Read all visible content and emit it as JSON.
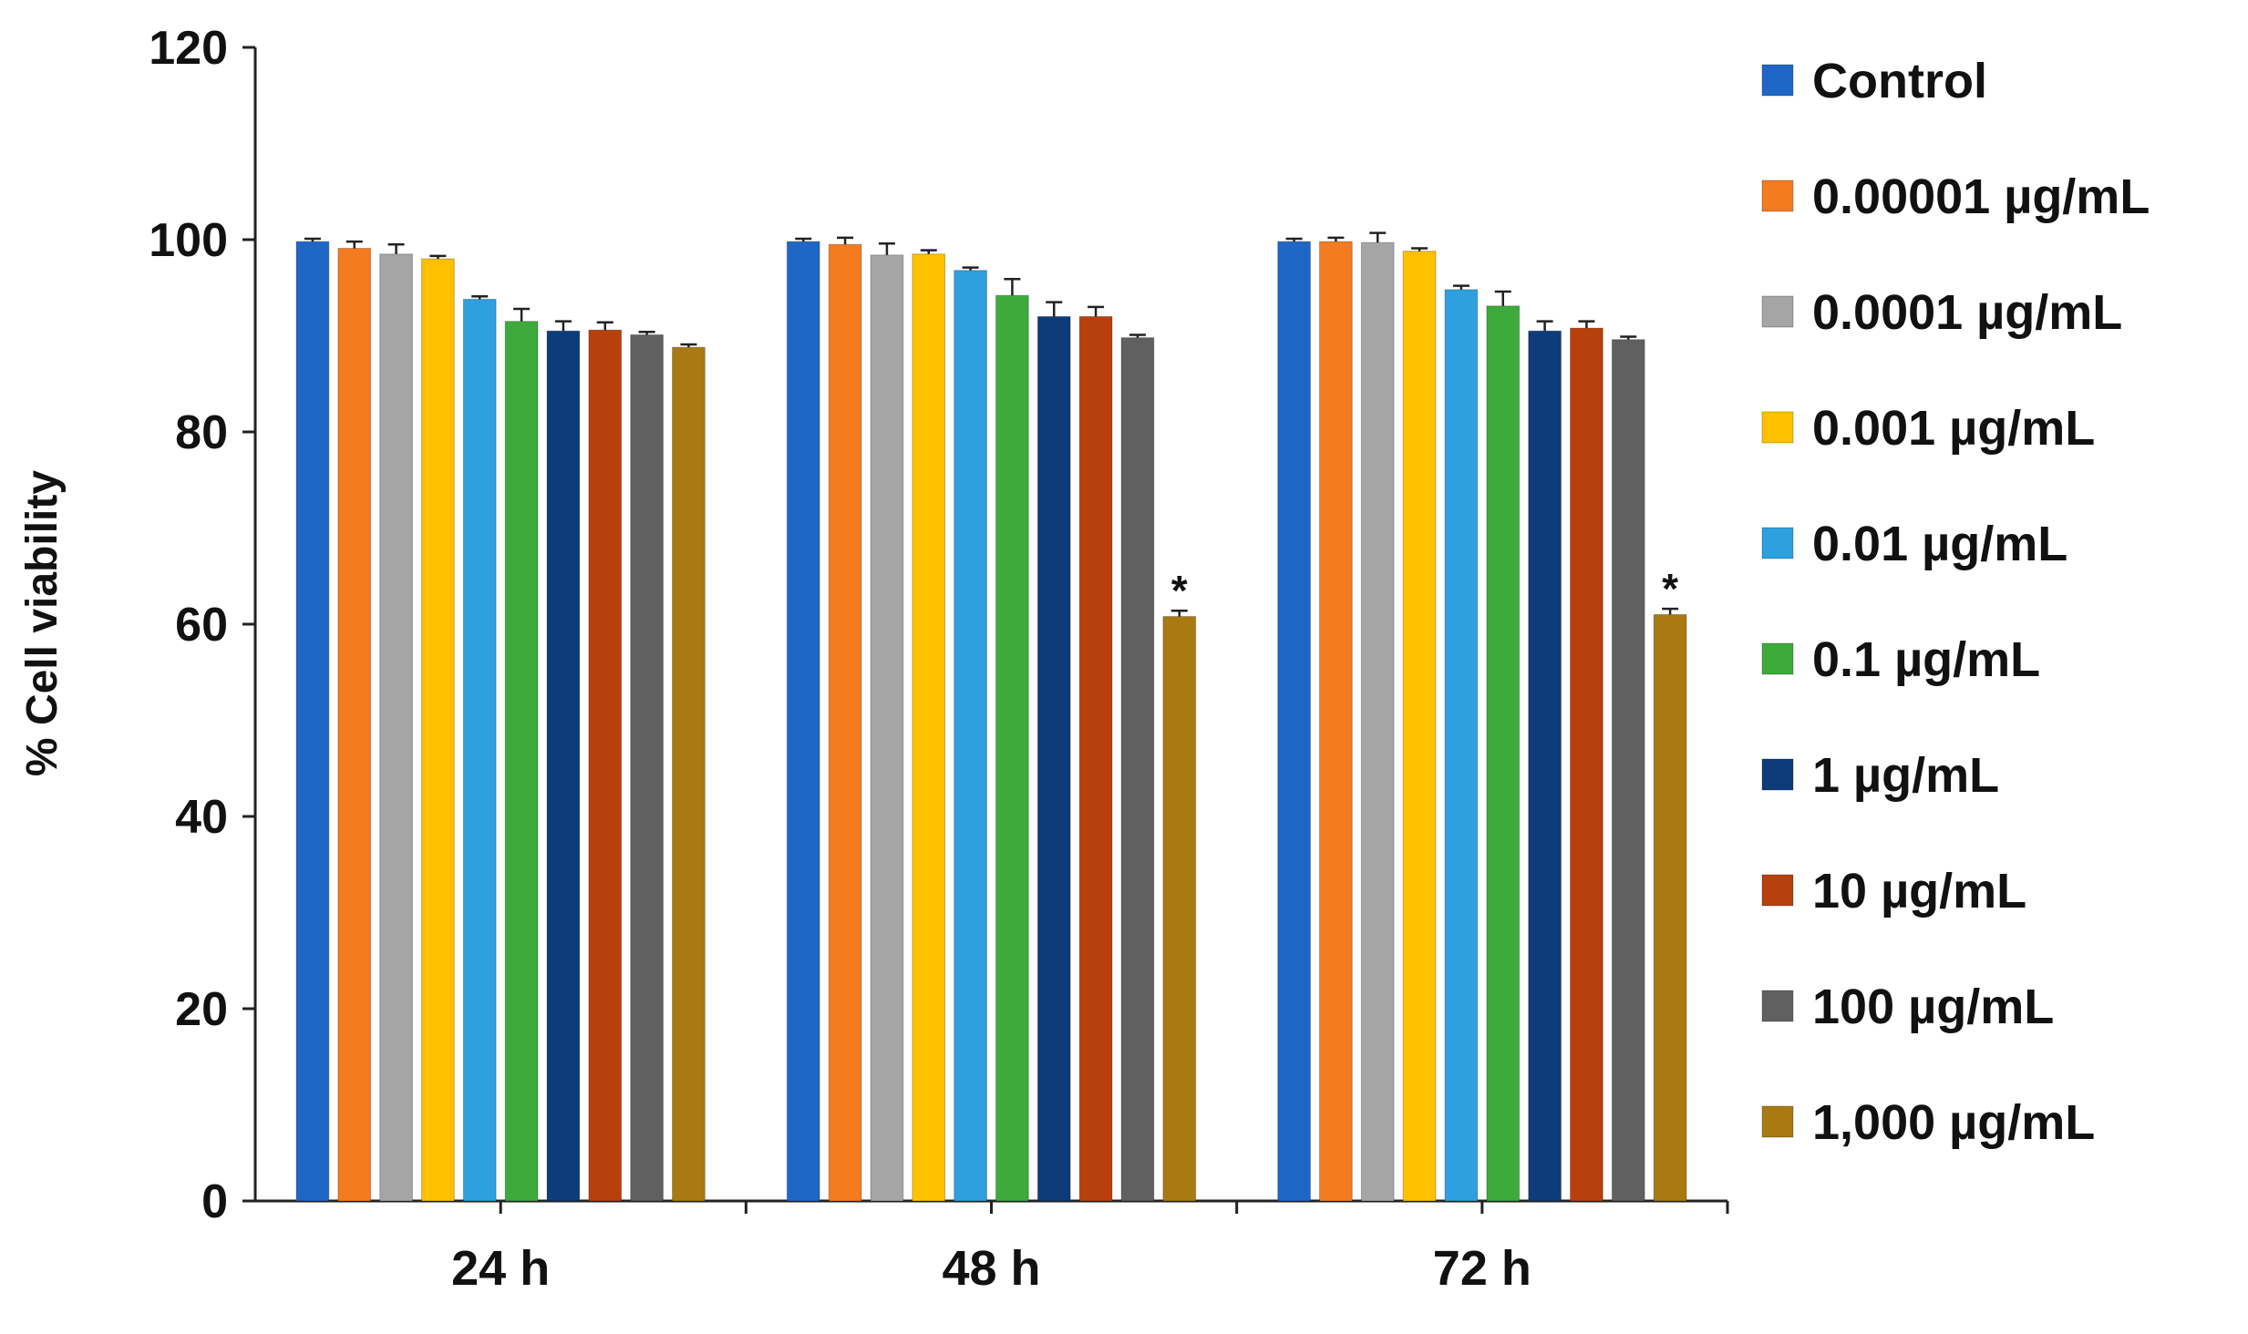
{
  "chart_data": {
    "type": "bar",
    "title": "",
    "xlabel": "",
    "ylabel": "% Cell viability",
    "ylim": [
      0,
      120
    ],
    "yticks": [
      0,
      20,
      40,
      60,
      80,
      100,
      120
    ],
    "grid": false,
    "legend_position": "right",
    "categories": [
      "24 h",
      "48 h",
      "72 h"
    ],
    "series": [
      {
        "name": "Control",
        "color": "#1f67c6",
        "values": [
          99.8,
          99.8,
          99.8
        ],
        "errors": [
          0.3,
          0.3,
          0.3
        ],
        "significant": [
          "",
          "",
          ""
        ]
      },
      {
        "name": "0.00001  µg/mL",
        "color": "#f47b20",
        "values": [
          99.1,
          99.5,
          99.8
        ],
        "errors": [
          0.7,
          0.7,
          0.4
        ],
        "significant": [
          "",
          "",
          ""
        ]
      },
      {
        "name": "0.0001  µg/mL",
        "color": "#a5a5a5",
        "values": [
          98.5,
          98.4,
          99.7
        ],
        "errors": [
          1.0,
          1.2,
          1.0
        ],
        "significant": [
          "",
          "",
          ""
        ]
      },
      {
        "name": "0.001 µg/mL",
        "color": "#ffc000",
        "values": [
          98.0,
          98.5,
          98.8
        ],
        "errors": [
          0.3,
          0.4,
          0.3
        ],
        "significant": [
          "",
          "",
          ""
        ]
      },
      {
        "name": "0.01 µg/mL",
        "color": "#2ea0e0",
        "values": [
          93.8,
          96.8,
          94.8
        ],
        "errors": [
          0.3,
          0.3,
          0.4
        ],
        "significant": [
          "",
          "",
          ""
        ]
      },
      {
        "name": "0.1 µg/mL",
        "color": "#3cab3c",
        "values": [
          91.5,
          94.2,
          93.1
        ],
        "errors": [
          1.3,
          1.7,
          1.5
        ],
        "significant": [
          "",
          "",
          ""
        ]
      },
      {
        "name": "1 µg/mL",
        "color": "#0e3c7a",
        "values": [
          90.5,
          92.0,
          90.5
        ],
        "errors": [
          1.0,
          1.5,
          1.0
        ],
        "significant": [
          "",
          "",
          ""
        ]
      },
      {
        "name": "10 µg/mL",
        "color": "#b8400c",
        "values": [
          90.6,
          92.0,
          90.8
        ],
        "errors": [
          0.8,
          1.0,
          0.7
        ],
        "significant": [
          "",
          "",
          ""
        ]
      },
      {
        "name": "100 µg/mL",
        "color": "#606060",
        "values": [
          90.1,
          89.8,
          89.6
        ],
        "errors": [
          0.3,
          0.3,
          0.3
        ],
        "significant": [
          "",
          "",
          ""
        ]
      },
      {
        "name": "1,000 µg/mL",
        "color": "#a97a12",
        "values": [
          88.8,
          60.8,
          61.0
        ],
        "errors": [
          0.3,
          0.6,
          0.6
        ],
        "significant": [
          "",
          "*",
          "*"
        ]
      }
    ]
  }
}
